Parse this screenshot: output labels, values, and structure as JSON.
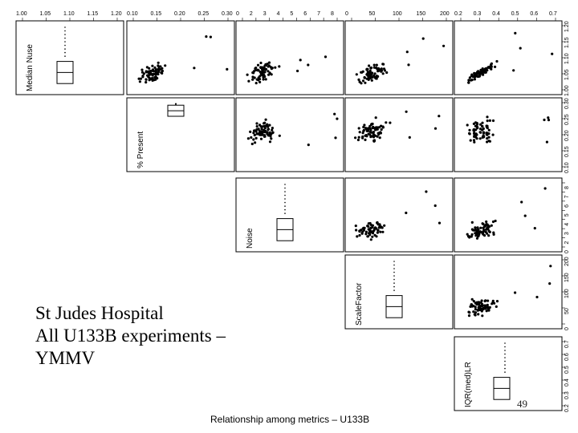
{
  "caption": {
    "line1": "St Judes Hospital",
    "line2": "All U133B experiments –",
    "line3": "YMMV"
  },
  "page_number": "49",
  "chart_data": {
    "type": "scatter",
    "title": "Relationship among metrics – U133B",
    "variables": [
      "Median Nuse",
      "% Present",
      "Noise",
      "ScaleFactor",
      "IQR(med)LR"
    ],
    "axis_ticks": {
      "Median Nuse": [
        "1.00",
        "1.05",
        "1.10",
        "1.15",
        "1.20"
      ],
      "% Present": [
        "0.10",
        "0.15",
        "0.20",
        "0.25",
        "0.30"
      ],
      "Noise": [
        "0",
        "2",
        "3",
        "4",
        "5",
        "6",
        "7",
        "8"
      ],
      "ScaleFactor": [
        "0",
        "50",
        "100",
        "150",
        "200"
      ],
      "IQR(med)LR": [
        "0.2",
        "0.3",
        "0.4",
        "0.5",
        "0.6",
        "0.7"
      ]
    },
    "diagonal": "boxplot",
    "layout": "upper-triangle scatterplot matrix"
  }
}
